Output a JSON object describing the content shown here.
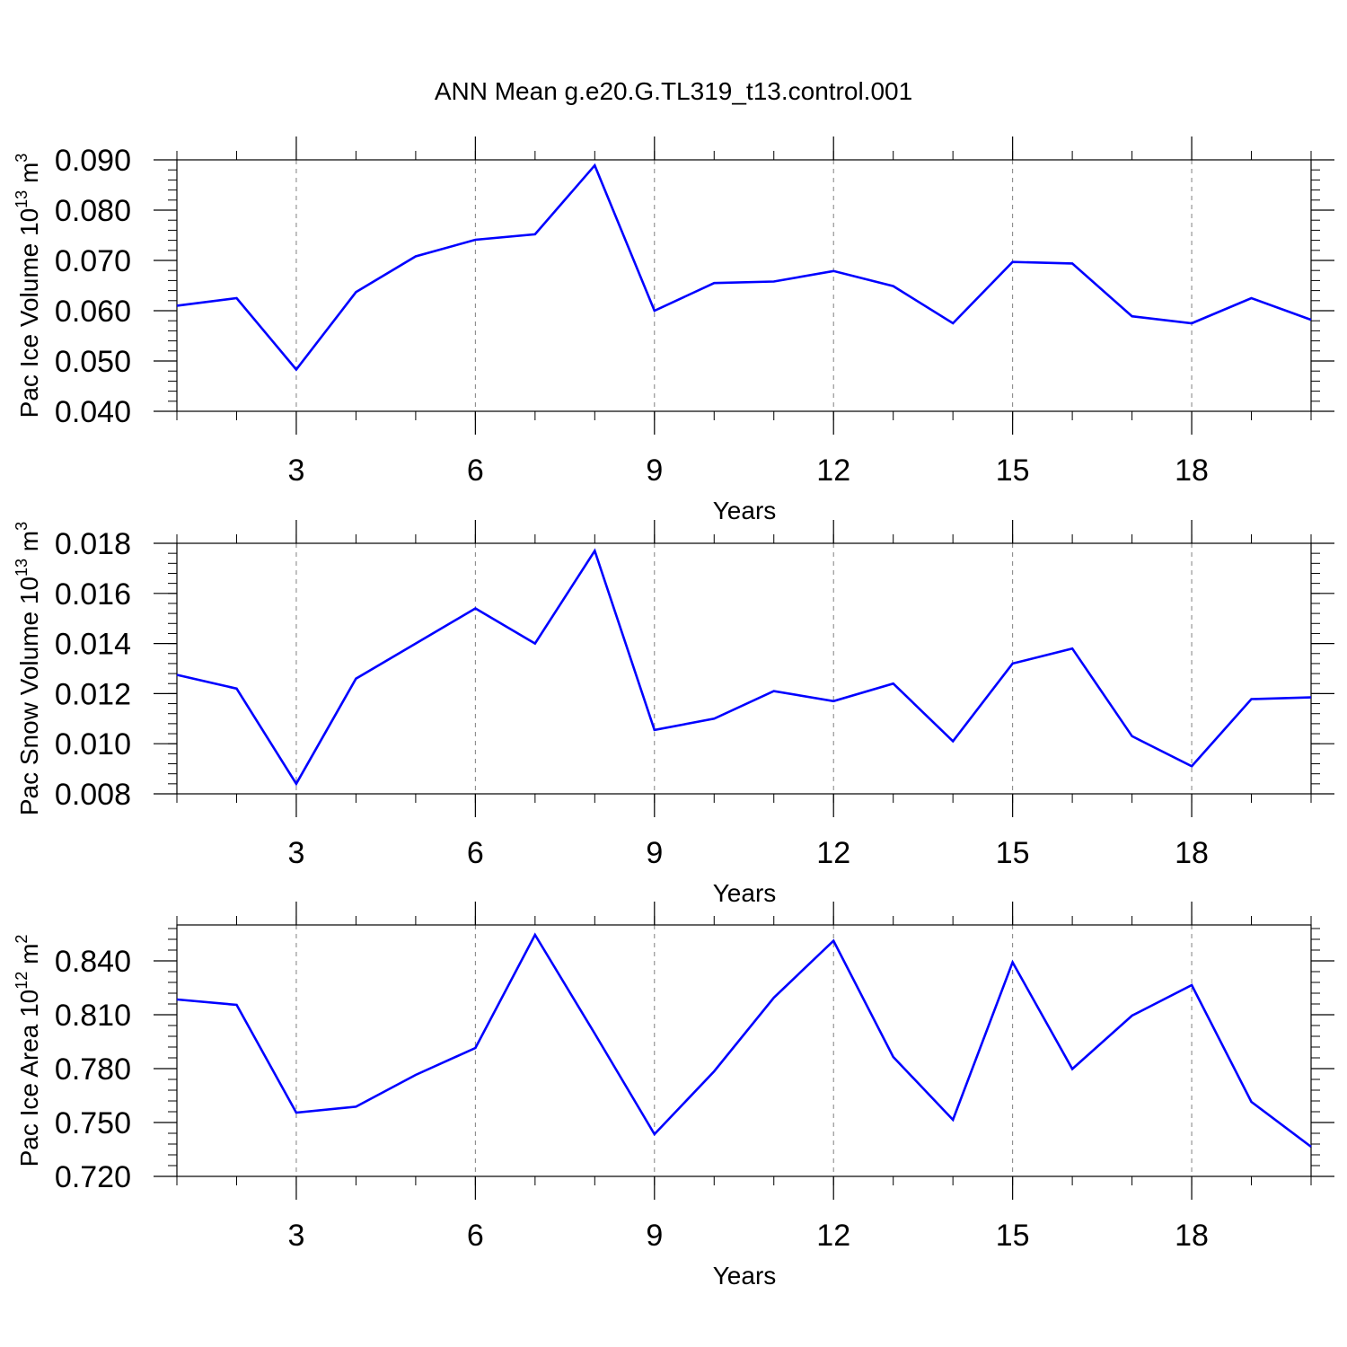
{
  "title": "ANN Mean g.e20.G.TL319_t13.control.001",
  "chart_data": [
    {
      "type": "line",
      "xlabel": "Years",
      "ylabel": "Pac Ice Volume 10",
      "ylabel_exp": "13",
      "ylabel_unit": "m",
      "ylabel_unit_exp": "3",
      "xlim": [
        1,
        20
      ],
      "ylim": [
        0.04,
        0.09
      ],
      "xticks": [
        3,
        6,
        9,
        12,
        15,
        18
      ],
      "xtick_labels": [
        "3",
        "6",
        "9",
        "12",
        "15",
        "18"
      ],
      "yticks": [
        0.04,
        0.05,
        0.06,
        0.07,
        0.08,
        0.09
      ],
      "ytick_labels": [
        "0.040",
        "0.050",
        "0.060",
        "0.070",
        "0.080",
        "0.090"
      ],
      "grid": "vertical dashed at major x ticks",
      "color": "#0000ff",
      "x": [
        1,
        2,
        3,
        4,
        5,
        6,
        7,
        8,
        9,
        10,
        11,
        12,
        13,
        14,
        15,
        16,
        17,
        18,
        19,
        20
      ],
      "values": [
        0.061,
        0.0625,
        0.0483,
        0.0637,
        0.0708,
        0.0741,
        0.0752,
        0.0889,
        0.06,
        0.0655,
        0.0658,
        0.0679,
        0.0649,
        0.0575,
        0.0697,
        0.0694,
        0.0589,
        0.0575,
        0.0625,
        0.0582
      ]
    },
    {
      "type": "line",
      "xlabel": "Years",
      "ylabel": "Pac Snow Volume 10",
      "ylabel_exp": "13",
      "ylabel_unit": "m",
      "ylabel_unit_exp": "3",
      "xlim": [
        1,
        20
      ],
      "ylim": [
        0.008,
        0.018
      ],
      "xticks": [
        3,
        6,
        9,
        12,
        15,
        18
      ],
      "xtick_labels": [
        "3",
        "6",
        "9",
        "12",
        "15",
        "18"
      ],
      "yticks": [
        0.008,
        0.01,
        0.012,
        0.014,
        0.016,
        0.018
      ],
      "ytick_labels": [
        "0.008",
        "0.010",
        "0.012",
        "0.014",
        "0.016",
        "0.018"
      ],
      "grid": "vertical dashed at major x ticks",
      "color": "#0000ff",
      "x": [
        1,
        2,
        3,
        4,
        5,
        6,
        7,
        8,
        9,
        10,
        11,
        12,
        13,
        14,
        15,
        16,
        17,
        18,
        19,
        20
      ],
      "values": [
        0.01275,
        0.0122,
        0.0084,
        0.0126,
        0.014,
        0.0154,
        0.014,
        0.0177,
        0.01055,
        0.011,
        0.0121,
        0.0117,
        0.0124,
        0.0101,
        0.0132,
        0.0138,
        0.0103,
        0.0091,
        0.01178,
        0.01185
      ]
    },
    {
      "type": "line",
      "xlabel": "Years",
      "ylabel": "Pac Ice Area 10",
      "ylabel_exp": "12",
      "ylabel_unit": "m",
      "ylabel_unit_exp": "2",
      "xlim": [
        1,
        20
      ],
      "ylim": [
        0.72,
        0.86
      ],
      "xticks": [
        3,
        6,
        9,
        12,
        15,
        18
      ],
      "xtick_labels": [
        "3",
        "6",
        "9",
        "12",
        "15",
        "18"
      ],
      "yticks": [
        0.72,
        0.75,
        0.78,
        0.81,
        0.84
      ],
      "ytick_labels": [
        "0.720",
        "0.750",
        "0.780",
        "0.810",
        "0.840"
      ],
      "grid": "vertical dashed at major x ticks",
      "color": "#0000ff",
      "x": [
        1,
        2,
        3,
        4,
        5,
        6,
        7,
        8,
        9,
        10,
        11,
        12,
        13,
        14,
        15,
        16,
        17,
        18,
        19,
        20
      ],
      "values": [
        0.8185,
        0.8155,
        0.7555,
        0.7588,
        0.7765,
        0.7915,
        0.8545,
        0.7995,
        0.7435,
        0.7785,
        0.8195,
        0.8512,
        0.7865,
        0.7515,
        0.8392,
        0.7798,
        0.8095,
        0.8265,
        0.7615,
        0.7365
      ]
    }
  ]
}
